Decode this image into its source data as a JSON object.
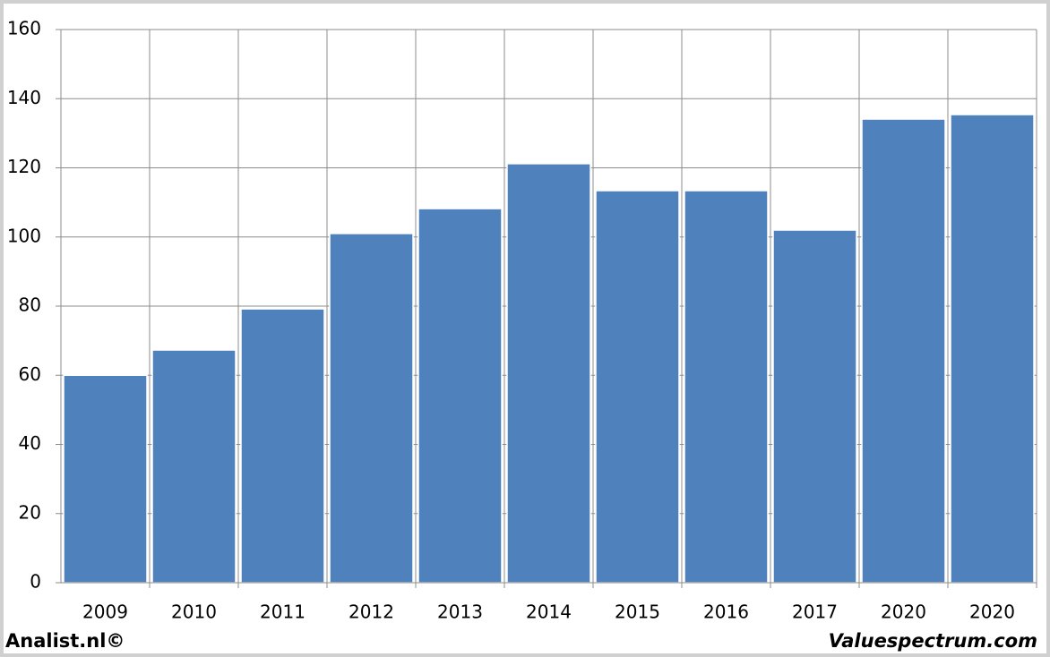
{
  "chart_data": {
    "type": "bar",
    "categories": [
      "2009",
      "2010",
      "2011",
      "2012",
      "2013",
      "2014",
      "2015",
      "2016",
      "2017",
      "2020",
      "2020"
    ],
    "values": [
      60,
      67.3,
      79.2,
      101,
      108.2,
      121.2,
      113.4,
      113.4,
      102,
      134.1,
      135.4
    ],
    "color": "#4f81bd",
    "ylim": [
      0,
      160
    ],
    "yticks": [
      0,
      20,
      40,
      60,
      80,
      100,
      120,
      140,
      160
    ],
    "grid": true,
    "footer_left": "Analist.nl©",
    "footer_right": "Valuespectrum.com"
  }
}
